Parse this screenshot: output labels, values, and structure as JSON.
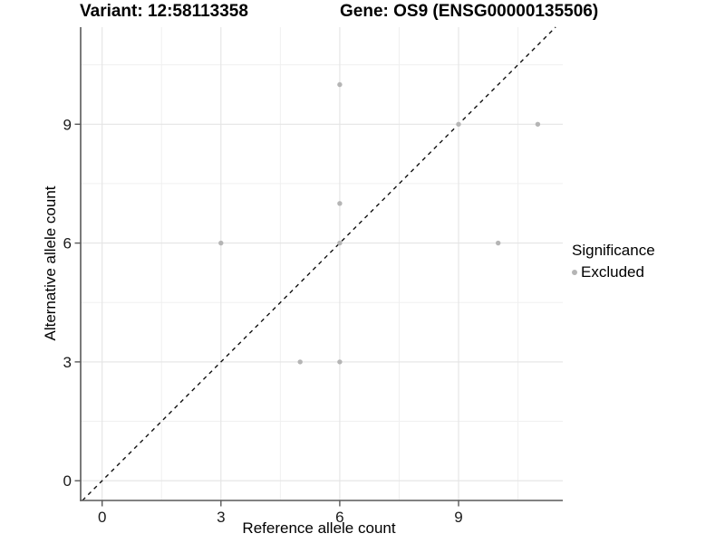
{
  "titles": {
    "variant": "Variant: 12:58113358",
    "gene": "Gene: OS9 (ENSG00000135506)"
  },
  "legend": {
    "title": "Significance",
    "items": [
      {
        "label": "Excluded",
        "color": "#b5b5b5"
      }
    ]
  },
  "colors": {
    "background": "#ffffff",
    "grid_major": "#e4e4e4",
    "grid_minor": "#f0f0f0",
    "axis_line": "#595959",
    "tick_text": "#1a1a1a",
    "identity_line": "#111111",
    "point": "#b5b5b5"
  },
  "chart_data": {
    "type": "scatter",
    "title": "Variant: 12:58113358 | Gene: OS9 (ENSG00000135506)",
    "xlabel": "Reference allele count",
    "ylabel": "Alternative allele count",
    "xticks": [
      0,
      3,
      6,
      9
    ],
    "yticks": [
      0,
      3,
      6,
      9
    ],
    "x_minor": [
      1.5,
      4.5,
      7.5,
      10.5
    ],
    "y_minor": [
      1.5,
      4.5,
      7.5,
      10.5
    ],
    "xlim": [
      -0.54,
      11.63
    ],
    "ylim": [
      -0.5,
      11.45
    ],
    "grid": true,
    "identity_line": {
      "show": true,
      "style": "dashed",
      "slope": 1,
      "intercept": 0
    },
    "legend_position": "right",
    "series": [
      {
        "name": "Excluded",
        "color": "#b5b5b5",
        "points": [
          [
            6,
            10
          ],
          [
            9,
            9
          ],
          [
            11,
            9
          ],
          [
            6,
            7
          ],
          [
            3,
            6
          ],
          [
            6,
            6
          ],
          [
            10,
            6
          ],
          [
            5,
            3
          ],
          [
            6,
            3
          ]
        ]
      }
    ]
  }
}
